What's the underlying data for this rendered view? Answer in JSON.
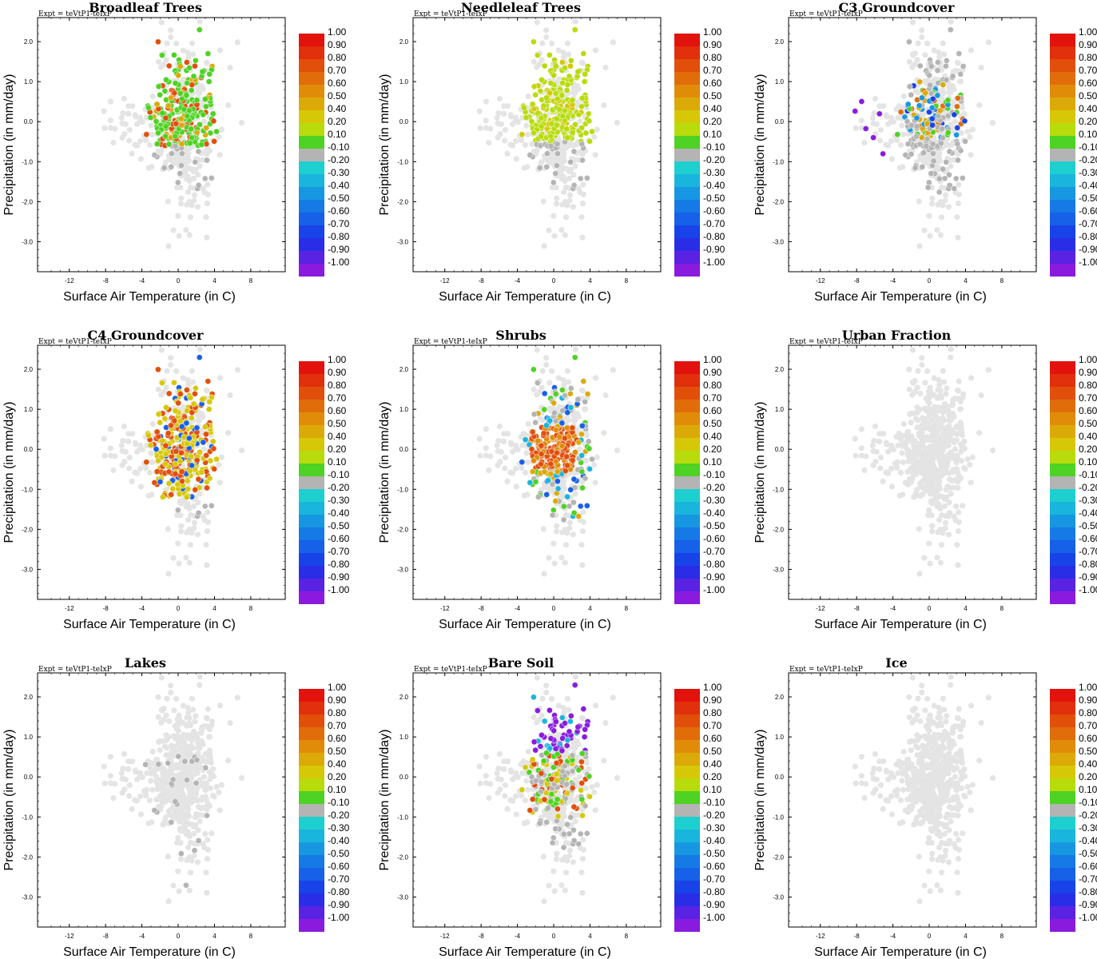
{
  "chart_data": {
    "type": "scatter",
    "layout": "3x3 grid of scatter panels",
    "x_axis": {
      "label": "Surface Air Temperature (in C)",
      "ticks": [
        -12,
        -8,
        -4,
        0,
        4,
        8
      ],
      "tick_labels": [
        "-12",
        "-8",
        "-4",
        "0",
        "4",
        "8"
      ],
      "range": [
        -15.5,
        11.8
      ]
    },
    "y_axis": {
      "label": "Precipitation (in mm/day)",
      "ticks": [
        2,
        1,
        0,
        -1,
        -2,
        -3
      ],
      "tick_labels": [
        "2.0",
        "1.0",
        "0.0",
        "-1.0",
        "-2.0",
        "-3.0"
      ],
      "range": [
        -3.75,
        2.6
      ]
    },
    "experiment_label": "Expt = teVtP1-teIxP",
    "colorbar": {
      "labels": [
        "1.00",
        "0.90",
        "0.80",
        "0.70",
        "0.60",
        "0.50",
        "0.40",
        "0.20",
        "0.10",
        "-0.10",
        "-0.20",
        "-0.30",
        "-0.40",
        "-0.50",
        "-0.60",
        "-0.70",
        "-0.80",
        "-0.90",
        "-1.00"
      ],
      "colors": [
        "#e2120c",
        "#e1300c",
        "#e14f0b",
        "#e06d0a",
        "#e08c09",
        "#dcaa08",
        "#d6c807",
        "#b8db0c",
        "#4ed223",
        "#b4b4b4",
        "#1ecfd0",
        "#1ab5dc",
        "#1797e2",
        "#1579e6",
        "#1760e8",
        "#1843e8",
        "#2a2de6",
        "#5a22e2",
        "#8a1bde"
      ]
    },
    "colors": {
      "background_points": "#e4e4e4",
      "neutral_points": "#b4b4b4",
      "frame": "#000000"
    },
    "panels": [
      {
        "title": "Broadleaf Trees",
        "pattern": "green_north"
      },
      {
        "title": "Needleleaf Trees",
        "pattern": "lightgreen_north"
      },
      {
        "title": "C3 Groundcover",
        "pattern": "mixed_west"
      },
      {
        "title": "C4 Groundcover",
        "pattern": "yellow_red"
      },
      {
        "title": "Shrubs",
        "pattern": "orange_center"
      },
      {
        "title": "Urban Fraction",
        "pattern": "none"
      },
      {
        "title": "Lakes",
        "pattern": "lakes"
      },
      {
        "title": "Bare Soil",
        "pattern": "purple_north"
      },
      {
        "title": "Ice",
        "pattern": "none"
      }
    ]
  }
}
